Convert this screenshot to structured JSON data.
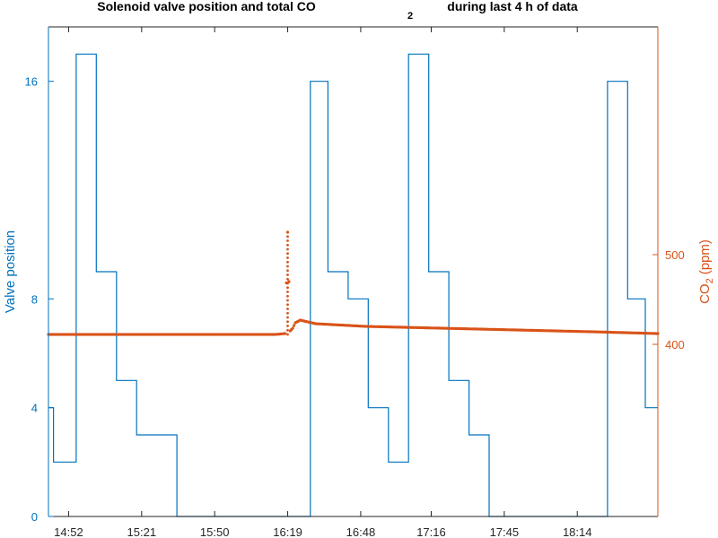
{
  "chart_data": {
    "type": "line",
    "title_parts": [
      "Solenoid valve position and total CO",
      "2",
      "during last 4 h of data"
    ],
    "xlabel": "",
    "ylabel_left": "Valve position",
    "ylabel_right_parts": [
      "CO",
      "2",
      "(ppm)"
    ],
    "x_tick_labels": [
      "14:52",
      "15:21",
      "15:50",
      "16:19",
      "16:48",
      "17:16",
      "17:45",
      "18:14"
    ],
    "y_left_ticks": [
      "0",
      "4",
      "8",
      "16"
    ],
    "y_right_ticks": [
      "400",
      "500"
    ],
    "colors": {
      "valve": "#0072BD",
      "co2": "#D95319"
    },
    "series": [
      {
        "axis": "left",
        "style": "stairs",
        "x": [
          "14:44",
          "14:46",
          "14:55",
          "15:03",
          "15:11",
          "15:19",
          "15:35",
          "16:28",
          "16:35",
          "16:43",
          "16:51",
          "16:59",
          "17:07",
          "17:15",
          "17:23",
          "17:31",
          "17:39",
          "18:26",
          "18:34",
          "18:41",
          "18:46"
        ],
        "values": [
          4,
          2,
          17,
          9,
          5,
          3,
          0,
          16,
          9,
          8,
          4,
          2,
          17,
          9,
          5,
          3,
          0,
          16,
          8,
          4,
          4
        ]
      },
      {
        "axis": "right",
        "style": "dots",
        "x": [
          "14:44",
          "15:10",
          "15:40",
          "16:05",
          "16:14",
          "16:18",
          "16:19",
          "16:20",
          "16:21",
          "16:22",
          "16:24",
          "16:30",
          "16:50",
          "17:20",
          "17:50",
          "18:20",
          "18:46"
        ],
        "values": [
          411,
          411,
          411,
          411,
          411,
          412,
          525,
          415,
          418,
          424,
          427,
          423,
          420,
          418,
          416,
          414,
          412
        ]
      }
    ]
  }
}
